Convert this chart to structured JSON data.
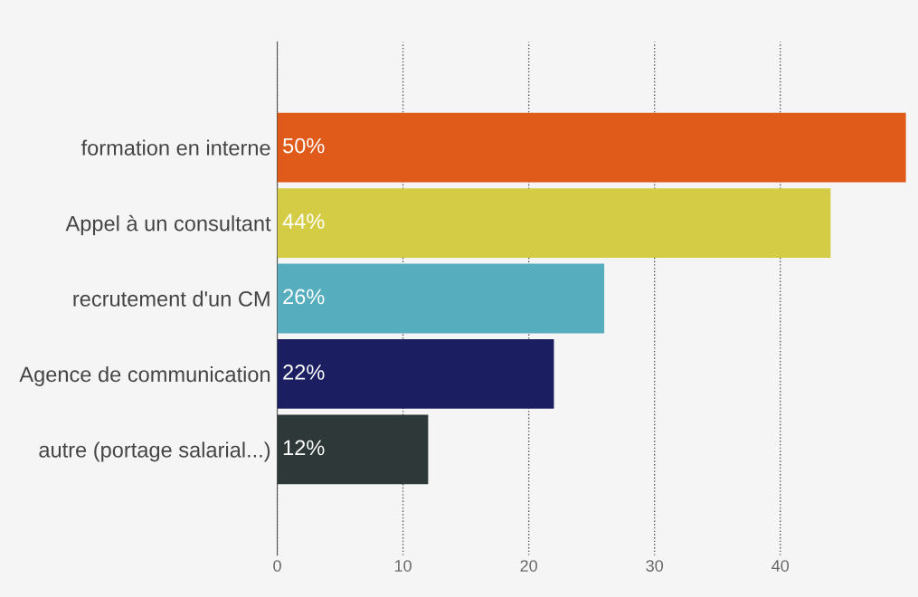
{
  "chart_data": {
    "type": "bar",
    "orientation": "horizontal",
    "categories": [
      "formation en interne",
      "Appel à un consultant",
      "recrutement d'un CM",
      "Agence de communication",
      "autre (portage salarial...)"
    ],
    "values": [
      50,
      44,
      26,
      22,
      12
    ],
    "colors": [
      "#e05a1a",
      "#d4cc45",
      "#55adbd",
      "#1b1f62",
      "#2f3838"
    ],
    "value_labels": [
      "50%",
      "44%",
      "26%",
      "22%",
      "12%"
    ],
    "xlim": [
      0,
      50
    ],
    "xticks": [
      0,
      10,
      20,
      30,
      40
    ],
    "grid": "x",
    "legend": false
  }
}
